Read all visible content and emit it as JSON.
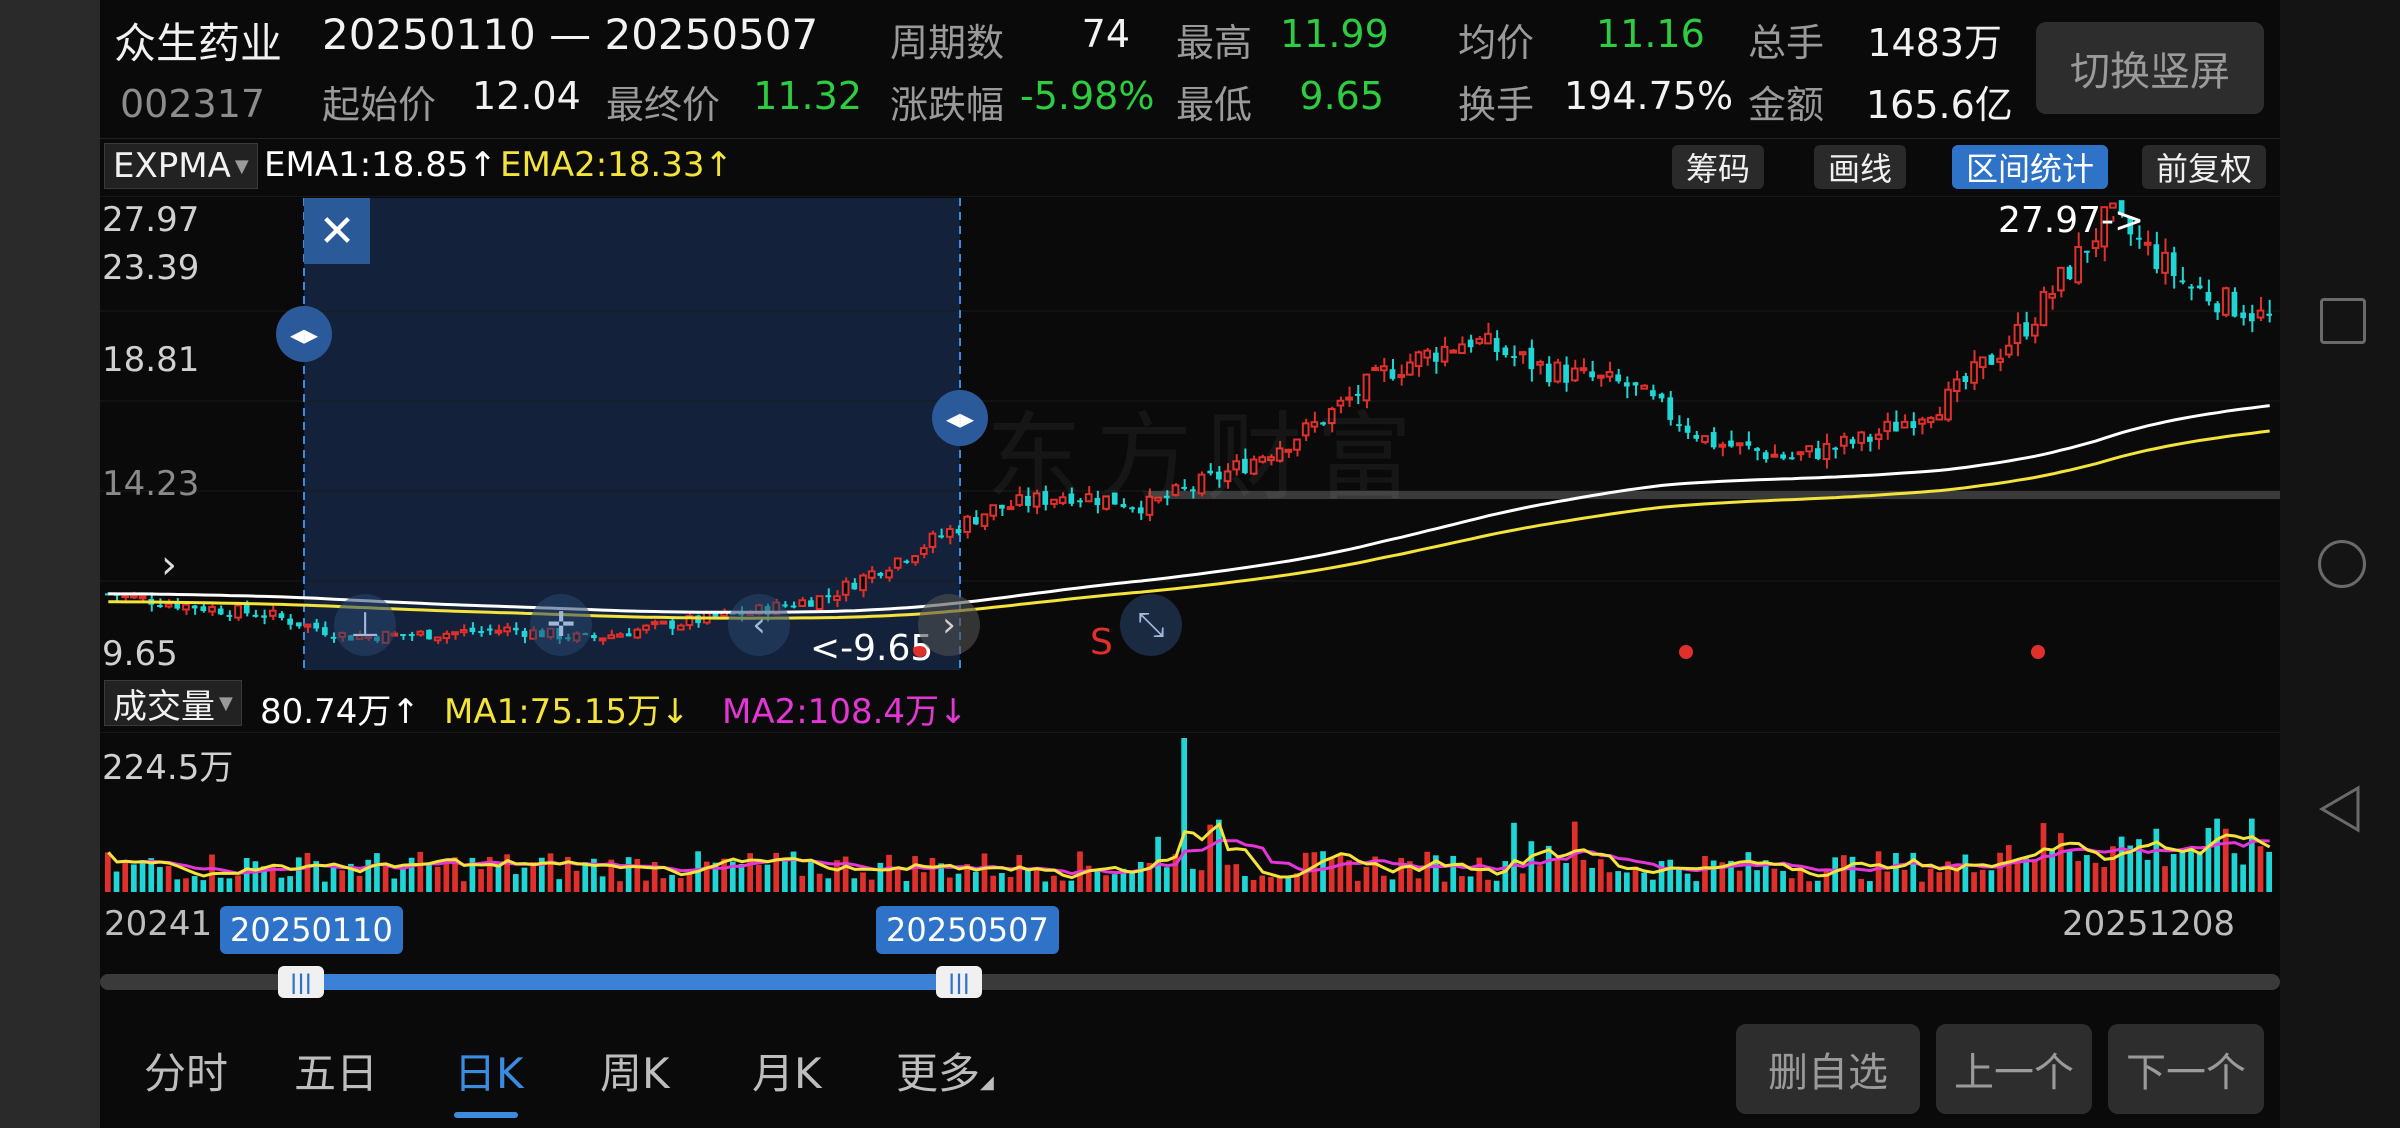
{
  "header": {
    "stock_name": "众生药业",
    "stock_code": "002317",
    "date_range": "20250110 — 20250507",
    "stats": {
      "periods_label": "周期数",
      "periods_value": "74",
      "high_label": "最高",
      "high_value": "11.99",
      "avg_label": "均价",
      "avg_value": "11.16",
      "total_hands_label": "总手",
      "total_hands_value": "1483万",
      "start_label": "起始价",
      "start_value": "12.04",
      "end_label": "最终价",
      "end_value": "11.32",
      "change_label": "涨跌幅",
      "change_value": "-5.98%",
      "low_label": "最低",
      "low_value": "9.65",
      "turnover_label": "换手",
      "turnover_value": "194.75%",
      "amount_label": "金额",
      "amount_value": "165.6亿"
    },
    "orientation_button": "切换竖屏"
  },
  "indicator": {
    "name": "EXPMA",
    "ema1": "EMA1:18.85",
    "ema2": "EMA2:18.33",
    "tools": [
      "筹码",
      "画线",
      "区间统计",
      "前复权"
    ],
    "active_tool": "区间统计"
  },
  "price_axis": [
    "27.97",
    "23.39",
    "18.81",
    "14.23",
    "9.65"
  ],
  "peak_label": "27.97->",
  "low_label": "<-9.65",
  "watermark": "东方财富",
  "sell_marker": "S",
  "volume": {
    "name": "成交量",
    "value": "80.74万",
    "ma1": "MA1:75.15万",
    "ma2": "MA2:108.4万",
    "max_label": "224.5万"
  },
  "date_axis": {
    "left": "20241",
    "right": "20251208",
    "selected_start": "20250110",
    "selected_end": "20250507"
  },
  "selection": {
    "start_fraction": 0.092,
    "end_fraction": 0.394
  },
  "tabs": [
    "分时",
    "五日",
    "日K",
    "周K",
    "月K",
    "更多"
  ],
  "active_tab": "日K",
  "bottom_buttons": [
    "删自选",
    "上一个",
    "下一个"
  ],
  "colors": {
    "up": "#e0302b",
    "down": "#1ed6d6",
    "ema1": "#ffffff",
    "ema2": "#f3e33a",
    "ma2": "#e535d6",
    "accent": "#2f73c8"
  },
  "chart_data": {
    "type": "candlestick",
    "ylim": [
      9.65,
      27.97
    ],
    "xlabel": "",
    "ylabel": "",
    "x": [
      "20241",
      "20250110",
      "20250507",
      "20251208"
    ],
    "price_levels": [
      9.65,
      14.23,
      18.81,
      23.39,
      27.97
    ],
    "close_trend": [
      12.1,
      11.6,
      11.2,
      10.3,
      10.4,
      10.6,
      10.2,
      10.8,
      11.3,
      12.0,
      13.8,
      15.6,
      16.3,
      15.8,
      17.2,
      19.0,
      21.5,
      22.8,
      21.5,
      20.8,
      18.5,
      17.8,
      18.6,
      20.3,
      23.5,
      27.97,
      25.0,
      23.6
    ],
    "ema1_end": 18.85,
    "ema2_end": 18.33,
    "volume_max": 224.5,
    "volume_last": 80.74,
    "volume_ma1": 75.15,
    "volume_ma2": 108.4
  }
}
